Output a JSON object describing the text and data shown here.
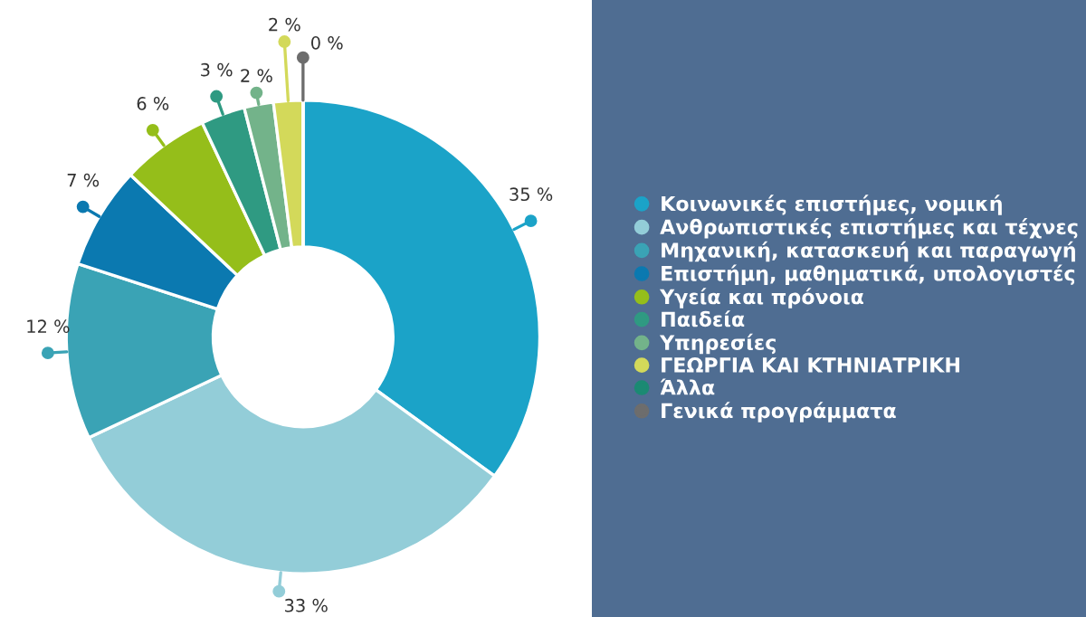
{
  "chart_data": {
    "type": "donut",
    "categories": [
      "Κοινωνικές επιστήμες, νομική",
      "Ανθρωπιστικές επιστήμες και τέχνες",
      "Μηχανική, κατασκευή και παραγωγή",
      "Επιστήμη, μαθηματικά, υπολογιστές",
      "Υγεία και πρόνοια",
      "Παιδεία",
      "Υπηρεσίες",
      "ΓΕΩΡΓΙΑ ΚΑΙ ΚΤΗΝΙΑΤΡΙΚΗ",
      "Άλλα",
      "Γενικά προγράμματα"
    ],
    "values": [
      35,
      33,
      12,
      7,
      6,
      3,
      2,
      2,
      0,
      0
    ],
    "value_labels": [
      "35 %",
      "33 %",
      "12 %",
      "7 %",
      "6 %",
      "3 %",
      "2 %",
      "2 %",
      null,
      "0 %"
    ],
    "colors": [
      "#1ba3c8",
      "#93cdd8",
      "#3aa3b5",
      "#0b79b0",
      "#95be1a",
      "#2f9a82",
      "#73b38a",
      "#d3d95a",
      "#1b8a73",
      "#6d6d6d"
    ],
    "legend": "right"
  }
}
